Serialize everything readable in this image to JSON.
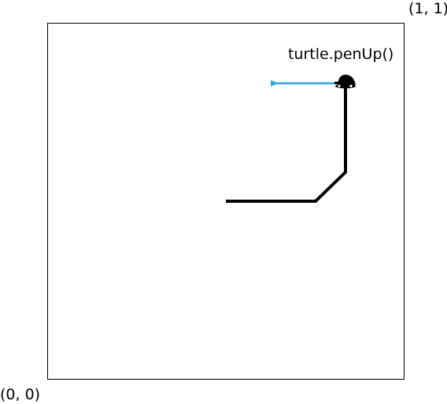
{
  "corners": {
    "top_right": "(1, 1)",
    "bottom_left": "(0, 0)"
  },
  "command": "turtle.penUp()",
  "colors": {
    "path": "#000000",
    "heading_arrow": "#2aa7e0",
    "turtle": "#000000"
  },
  "icons": {
    "turtle": "turtle-icon"
  }
}
